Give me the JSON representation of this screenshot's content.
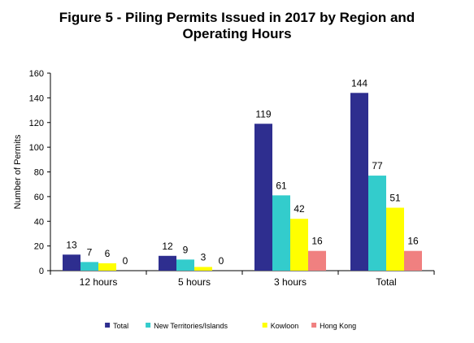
{
  "chart_data": {
    "type": "bar",
    "title_lines": [
      "Figure 5 - Piling Permits Issued in 2017 by Region and",
      "Operating Hours"
    ],
    "ylabel": "Number of Permits",
    "xlabel": "",
    "ylim": [
      0,
      160
    ],
    "yticks": [
      0,
      20,
      40,
      60,
      80,
      100,
      120,
      140,
      160
    ],
    "categories": [
      "12 hours",
      "5 hours",
      "3 hours",
      "Total"
    ],
    "series": [
      {
        "name": "Total",
        "color": "#2e2e8f",
        "values": [
          13,
          12,
          119,
          144
        ]
      },
      {
        "name": "New Territories/Islands",
        "color": "#33cccc",
        "values": [
          7,
          9,
          61,
          77
        ]
      },
      {
        "name": "Kowloon",
        "color": "#ffff00",
        "values": [
          6,
          3,
          42,
          51
        ]
      },
      {
        "name": "Hong Kong",
        "color": "#f08080",
        "values": [
          0,
          0,
          16,
          16
        ]
      }
    ],
    "grid": false,
    "legend_position": "bottom"
  }
}
